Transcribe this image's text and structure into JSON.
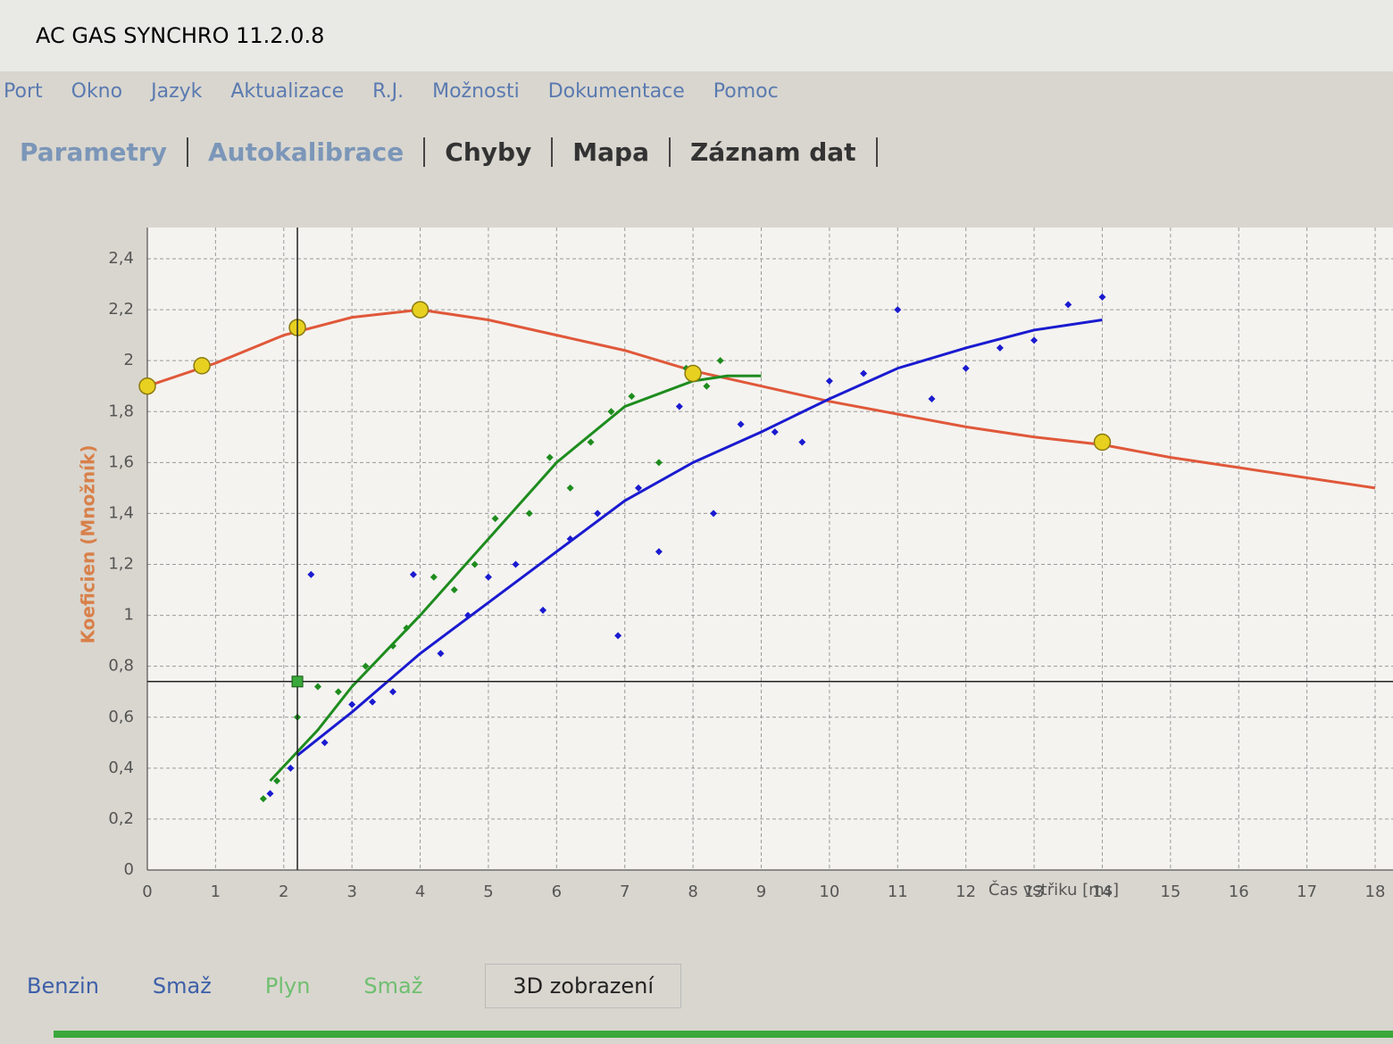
{
  "app": {
    "title": "AC GAS SYNCHRO 11.2.0.8",
    "menu": [
      "Port",
      "Okno",
      "Jazyk",
      "Aktualizace",
      "R.J.",
      "Možnosti",
      "Dokumentace",
      "Pomoc"
    ],
    "tabs": [
      "Parametry",
      "Autokalibrace",
      "Chyby",
      "Mapa",
      "Záznam dat"
    ],
    "buttons": [
      "Benzin",
      "Smaž",
      "Plyn",
      "Smaž",
      "3D zobrazení"
    ]
  },
  "chart_data": {
    "type": "scatter",
    "ylabel": "Koeficien (Množník)",
    "xlabel": "Čas vstřiku [ms]",
    "xlim": [
      0,
      18
    ],
    "xticks": [
      0,
      1,
      2,
      3,
      4,
      5,
      6,
      7,
      8,
      9,
      10,
      11,
      12,
      13,
      14,
      15,
      16,
      17,
      18
    ],
    "ylim": [
      0,
      2.4
    ],
    "yticks": [
      0,
      {
        "value": 0.2,
        "label": "0,2"
      },
      {
        "value": 0.4,
        "label": "0,4"
      },
      {
        "value": 0.6,
        "label": "0,6"
      },
      {
        "value": 0.8,
        "label": "0,8"
      },
      1,
      {
        "value": 1.2,
        "label": "1,2"
      },
      {
        "value": 1.4,
        "label": "1,4"
      },
      {
        "value": 1.6,
        "label": "1,6"
      },
      {
        "value": 1.8,
        "label": "1,8"
      },
      2,
      {
        "value": 2.2,
        "label": "2,2"
      },
      {
        "value": 2.4,
        "label": "2,4"
      }
    ],
    "grid": true,
    "cursor": {
      "x": 2.2,
      "y": 0.74
    },
    "series": [
      {
        "style": "line",
        "color": "#e0583a",
        "x": [
          0,
          1,
          2,
          3,
          4,
          5,
          6,
          7,
          8,
          9,
          10,
          11,
          12,
          13,
          14,
          15,
          16,
          17,
          18
        ],
        "values": [
          1.9,
          1.99,
          2.1,
          2.17,
          2.2,
          2.16,
          2.1,
          2.04,
          1.96,
          1.9,
          1.84,
          1.79,
          1.74,
          1.7,
          1.67,
          1.62,
          1.58,
          1.54,
          1.5
        ]
      },
      {
        "style": "points",
        "color": "#1a1ad0",
        "x": [
          1.8,
          2.1,
          2.4,
          2.6,
          3,
          3.3,
          3.6,
          3.9,
          4.3,
          4.7,
          5,
          5.4,
          5.8,
          6.2,
          6.6,
          6.9,
          7.2,
          7.5,
          7.8,
          8.3,
          8.7,
          9.2,
          9.6,
          10,
          10.5,
          11,
          11.5,
          12,
          12.5,
          13,
          13.5,
          14
        ],
        "values": [
          0.3,
          0.4,
          1.16,
          0.5,
          0.65,
          0.66,
          0.7,
          1.16,
          0.85,
          1,
          1.15,
          1.2,
          1.02,
          1.3,
          1.4,
          0.92,
          1.5,
          1.25,
          1.82,
          1.4,
          1.75,
          1.72,
          1.68,
          1.92,
          1.95,
          2.2,
          1.85,
          1.97,
          2.05,
          2.08,
          2.22,
          2.25
        ]
      },
      {
        "style": "points",
        "color": "#1e8c1e",
        "x": [
          1.7,
          1.9,
          2.2,
          2.5,
          2.8,
          3.2,
          3.6,
          3.8,
          4.2,
          4.5,
          4.8,
          5.1,
          5.6,
          5.9,
          6.2,
          6.5,
          6.8,
          7.1,
          7.5,
          7.9,
          8.2,
          8.4
        ],
        "values": [
          0.28,
          0.35,
          0.6,
          0.72,
          0.7,
          0.8,
          0.88,
          0.95,
          1.15,
          1.1,
          1.2,
          1.38,
          1.4,
          1.62,
          1.5,
          1.68,
          1.8,
          1.86,
          1.6,
          1.97,
          1.9,
          2
        ]
      },
      {
        "style": "line",
        "color": "#1a1ad0",
        "x": [
          2.2,
          3,
          4,
          5,
          6,
          7,
          8,
          9,
          10,
          11,
          12,
          13,
          14
        ],
        "values": [
          0.45,
          0.62,
          0.85,
          1.05,
          1.25,
          1.45,
          1.6,
          1.72,
          1.85,
          1.97,
          2.05,
          2.12,
          2.16
        ]
      },
      {
        "style": "line",
        "color": "#1e8c1e",
        "x": [
          1.8,
          2.5,
          3,
          4,
          5,
          6,
          7,
          8,
          8.5,
          9
        ],
        "values": [
          0.35,
          0.55,
          0.72,
          1,
          1.3,
          1.6,
          1.82,
          1.92,
          1.94,
          1.94
        ]
      },
      {
        "style": "handles",
        "color": "#e8d020",
        "x": [
          0,
          0.8,
          2.2,
          4,
          8,
          14
        ],
        "values": [
          1.9,
          1.98,
          2.13,
          2.2,
          1.95,
          1.68
        ]
      }
    ]
  }
}
